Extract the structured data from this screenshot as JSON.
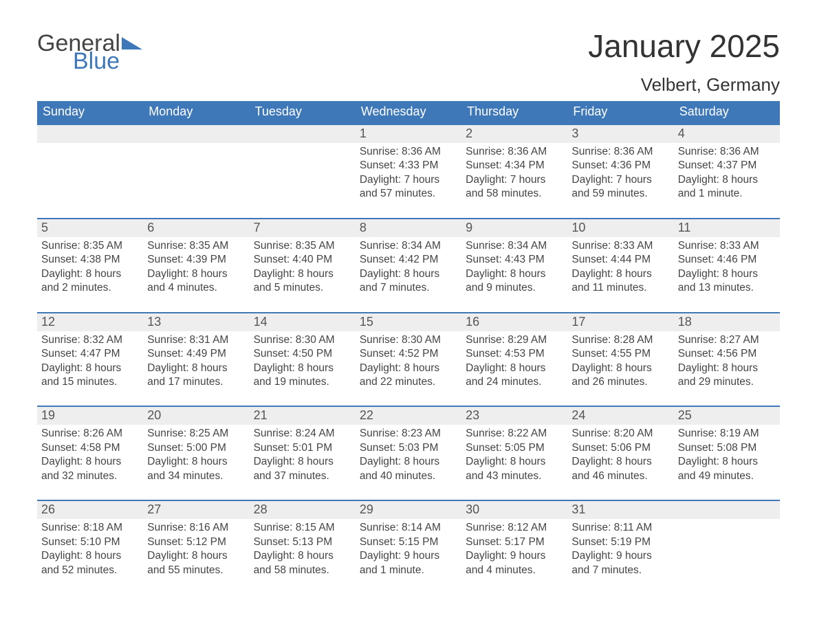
{
  "logo": {
    "word1": "General",
    "word2": "Blue"
  },
  "title": "January 2025",
  "location": "Velbert, Germany",
  "colors": {
    "header_bg": "#3e78b9",
    "header_text": "#ffffff",
    "daynum_bg": "#eeeeee",
    "border_top": "#3e78b9",
    "text": "#444444"
  },
  "days_of_week": [
    "Sunday",
    "Monday",
    "Tuesday",
    "Wednesday",
    "Thursday",
    "Friday",
    "Saturday"
  ],
  "weeks": [
    [
      null,
      null,
      null,
      {
        "n": "1",
        "sunrise": "Sunrise: 8:36 AM",
        "sunset": "Sunset: 4:33 PM",
        "d1": "Daylight: 7 hours",
        "d2": "and 57 minutes."
      },
      {
        "n": "2",
        "sunrise": "Sunrise: 8:36 AM",
        "sunset": "Sunset: 4:34 PM",
        "d1": "Daylight: 7 hours",
        "d2": "and 58 minutes."
      },
      {
        "n": "3",
        "sunrise": "Sunrise: 8:36 AM",
        "sunset": "Sunset: 4:36 PM",
        "d1": "Daylight: 7 hours",
        "d2": "and 59 minutes."
      },
      {
        "n": "4",
        "sunrise": "Sunrise: 8:36 AM",
        "sunset": "Sunset: 4:37 PM",
        "d1": "Daylight: 8 hours",
        "d2": "and 1 minute."
      }
    ],
    [
      {
        "n": "5",
        "sunrise": "Sunrise: 8:35 AM",
        "sunset": "Sunset: 4:38 PM",
        "d1": "Daylight: 8 hours",
        "d2": "and 2 minutes."
      },
      {
        "n": "6",
        "sunrise": "Sunrise: 8:35 AM",
        "sunset": "Sunset: 4:39 PM",
        "d1": "Daylight: 8 hours",
        "d2": "and 4 minutes."
      },
      {
        "n": "7",
        "sunrise": "Sunrise: 8:35 AM",
        "sunset": "Sunset: 4:40 PM",
        "d1": "Daylight: 8 hours",
        "d2": "and 5 minutes."
      },
      {
        "n": "8",
        "sunrise": "Sunrise: 8:34 AM",
        "sunset": "Sunset: 4:42 PM",
        "d1": "Daylight: 8 hours",
        "d2": "and 7 minutes."
      },
      {
        "n": "9",
        "sunrise": "Sunrise: 8:34 AM",
        "sunset": "Sunset: 4:43 PM",
        "d1": "Daylight: 8 hours",
        "d2": "and 9 minutes."
      },
      {
        "n": "10",
        "sunrise": "Sunrise: 8:33 AM",
        "sunset": "Sunset: 4:44 PM",
        "d1": "Daylight: 8 hours",
        "d2": "and 11 minutes."
      },
      {
        "n": "11",
        "sunrise": "Sunrise: 8:33 AM",
        "sunset": "Sunset: 4:46 PM",
        "d1": "Daylight: 8 hours",
        "d2": "and 13 minutes."
      }
    ],
    [
      {
        "n": "12",
        "sunrise": "Sunrise: 8:32 AM",
        "sunset": "Sunset: 4:47 PM",
        "d1": "Daylight: 8 hours",
        "d2": "and 15 minutes."
      },
      {
        "n": "13",
        "sunrise": "Sunrise: 8:31 AM",
        "sunset": "Sunset: 4:49 PM",
        "d1": "Daylight: 8 hours",
        "d2": "and 17 minutes."
      },
      {
        "n": "14",
        "sunrise": "Sunrise: 8:30 AM",
        "sunset": "Sunset: 4:50 PM",
        "d1": "Daylight: 8 hours",
        "d2": "and 19 minutes."
      },
      {
        "n": "15",
        "sunrise": "Sunrise: 8:30 AM",
        "sunset": "Sunset: 4:52 PM",
        "d1": "Daylight: 8 hours",
        "d2": "and 22 minutes."
      },
      {
        "n": "16",
        "sunrise": "Sunrise: 8:29 AM",
        "sunset": "Sunset: 4:53 PM",
        "d1": "Daylight: 8 hours",
        "d2": "and 24 minutes."
      },
      {
        "n": "17",
        "sunrise": "Sunrise: 8:28 AM",
        "sunset": "Sunset: 4:55 PM",
        "d1": "Daylight: 8 hours",
        "d2": "and 26 minutes."
      },
      {
        "n": "18",
        "sunrise": "Sunrise: 8:27 AM",
        "sunset": "Sunset: 4:56 PM",
        "d1": "Daylight: 8 hours",
        "d2": "and 29 minutes."
      }
    ],
    [
      {
        "n": "19",
        "sunrise": "Sunrise: 8:26 AM",
        "sunset": "Sunset: 4:58 PM",
        "d1": "Daylight: 8 hours",
        "d2": "and 32 minutes."
      },
      {
        "n": "20",
        "sunrise": "Sunrise: 8:25 AM",
        "sunset": "Sunset: 5:00 PM",
        "d1": "Daylight: 8 hours",
        "d2": "and 34 minutes."
      },
      {
        "n": "21",
        "sunrise": "Sunrise: 8:24 AM",
        "sunset": "Sunset: 5:01 PM",
        "d1": "Daylight: 8 hours",
        "d2": "and 37 minutes."
      },
      {
        "n": "22",
        "sunrise": "Sunrise: 8:23 AM",
        "sunset": "Sunset: 5:03 PM",
        "d1": "Daylight: 8 hours",
        "d2": "and 40 minutes."
      },
      {
        "n": "23",
        "sunrise": "Sunrise: 8:22 AM",
        "sunset": "Sunset: 5:05 PM",
        "d1": "Daylight: 8 hours",
        "d2": "and 43 minutes."
      },
      {
        "n": "24",
        "sunrise": "Sunrise: 8:20 AM",
        "sunset": "Sunset: 5:06 PM",
        "d1": "Daylight: 8 hours",
        "d2": "and 46 minutes."
      },
      {
        "n": "25",
        "sunrise": "Sunrise: 8:19 AM",
        "sunset": "Sunset: 5:08 PM",
        "d1": "Daylight: 8 hours",
        "d2": "and 49 minutes."
      }
    ],
    [
      {
        "n": "26",
        "sunrise": "Sunrise: 8:18 AM",
        "sunset": "Sunset: 5:10 PM",
        "d1": "Daylight: 8 hours",
        "d2": "and 52 minutes."
      },
      {
        "n": "27",
        "sunrise": "Sunrise: 8:16 AM",
        "sunset": "Sunset: 5:12 PM",
        "d1": "Daylight: 8 hours",
        "d2": "and 55 minutes."
      },
      {
        "n": "28",
        "sunrise": "Sunrise: 8:15 AM",
        "sunset": "Sunset: 5:13 PM",
        "d1": "Daylight: 8 hours",
        "d2": "and 58 minutes."
      },
      {
        "n": "29",
        "sunrise": "Sunrise: 8:14 AM",
        "sunset": "Sunset: 5:15 PM",
        "d1": "Daylight: 9 hours",
        "d2": "and 1 minute."
      },
      {
        "n": "30",
        "sunrise": "Sunrise: 8:12 AM",
        "sunset": "Sunset: 5:17 PM",
        "d1": "Daylight: 9 hours",
        "d2": "and 4 minutes."
      },
      {
        "n": "31",
        "sunrise": "Sunrise: 8:11 AM",
        "sunset": "Sunset: 5:19 PM",
        "d1": "Daylight: 9 hours",
        "d2": "and 7 minutes."
      },
      null
    ]
  ]
}
